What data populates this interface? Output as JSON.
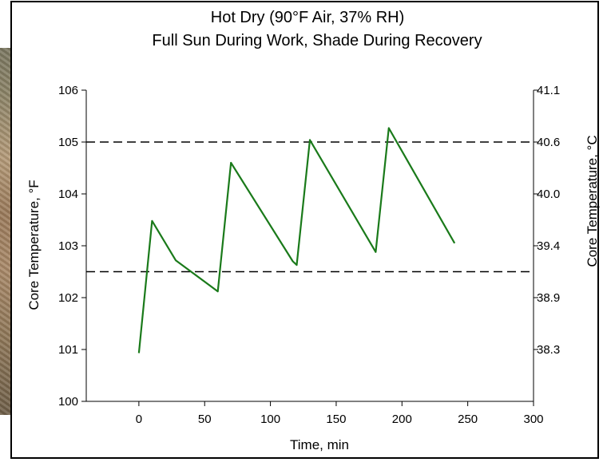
{
  "chart_data": {
    "type": "line",
    "title": "Hot Dry (90°F Air, 37% RH)",
    "subtitle": "Full Sun During Work, Shade During Recovery",
    "xlabel": "Time, min",
    "ylabel": "Core Temperature, °F",
    "y2label": "Core Temperature, °C",
    "xlim": [
      -40,
      300
    ],
    "ylim": [
      100,
      106
    ],
    "x_ticks": [
      0,
      50,
      100,
      150,
      200,
      250,
      300
    ],
    "y_ticks": [
      100,
      101,
      102,
      103,
      104,
      105,
      106
    ],
    "y2_ticks": [
      "38.3",
      "38.9",
      "39.4",
      "40.0",
      "40.6",
      "41.1"
    ],
    "y2_tick_positions_F": [
      101,
      102,
      103,
      104,
      105,
      106
    ],
    "grid": false,
    "legend": "none",
    "reference_lines": [
      105,
      102.5
    ],
    "series": [
      {
        "color": "#1a7a1a",
        "x": [
          0,
          10,
          28,
          60,
          70,
          117,
          120,
          130,
          180,
          190,
          240
        ],
        "y": [
          100.93,
          103.48,
          102.72,
          102.12,
          104.6,
          102.7,
          102.63,
          105.04,
          102.88,
          105.27,
          103.05
        ]
      }
    ]
  }
}
